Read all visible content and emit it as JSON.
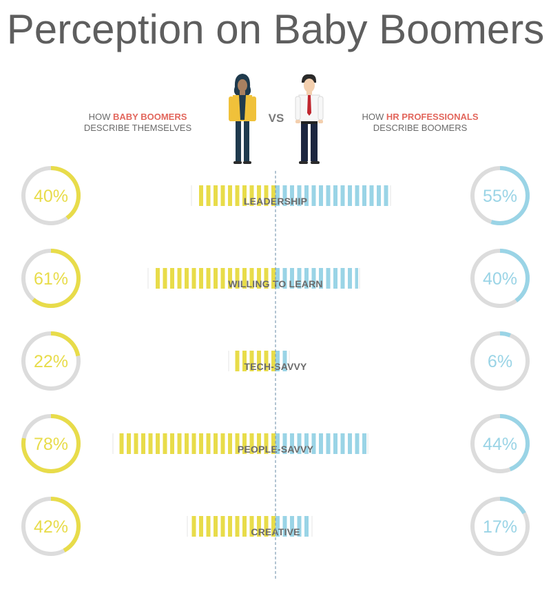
{
  "title": "Perception on Baby Boomers",
  "header": {
    "left": {
      "prefix": "HOW ",
      "highlight": "BABY BOOMERS",
      "line2": "DESCRIBE THEMSELVES"
    },
    "vs": "VS",
    "right": {
      "prefix": "HOW ",
      "highlight": "HR PROFESSIONALS",
      "line2": "DESCRIBE BOOMERS"
    }
  },
  "colors": {
    "boomers": "#e8dc4a",
    "hr": "#9ad4e6",
    "ring_track": "#dcdcdc",
    "highlight_text": "#e2665c",
    "center_line": "#7f9cb4"
  },
  "icons": {
    "left_figure": "woman-in-yellow-jacket-icon",
    "right_figure": "man-with-red-tie-icon"
  },
  "chart_data": {
    "type": "bar",
    "orientation": "diverging-horizontal",
    "categories": [
      "LEADERSHIP",
      "WILLING TO LEARN",
      "TECH-SAVVY",
      "PEOPLE-SAVVY",
      "CREATIVE"
    ],
    "series": [
      {
        "side": "left",
        "values": [
          40,
          61,
          22,
          78,
          42
        ],
        "labels": [
          "40%",
          "61%",
          "22%",
          "78%",
          "42%"
        ]
      },
      {
        "side": "right",
        "values": [
          55,
          40,
          6,
          44,
          17
        ],
        "labels": [
          "55%",
          "40%",
          "6%",
          "44%",
          "17%"
        ]
      }
    ],
    "unit": "%",
    "xlim": [
      0,
      100
    ]
  }
}
